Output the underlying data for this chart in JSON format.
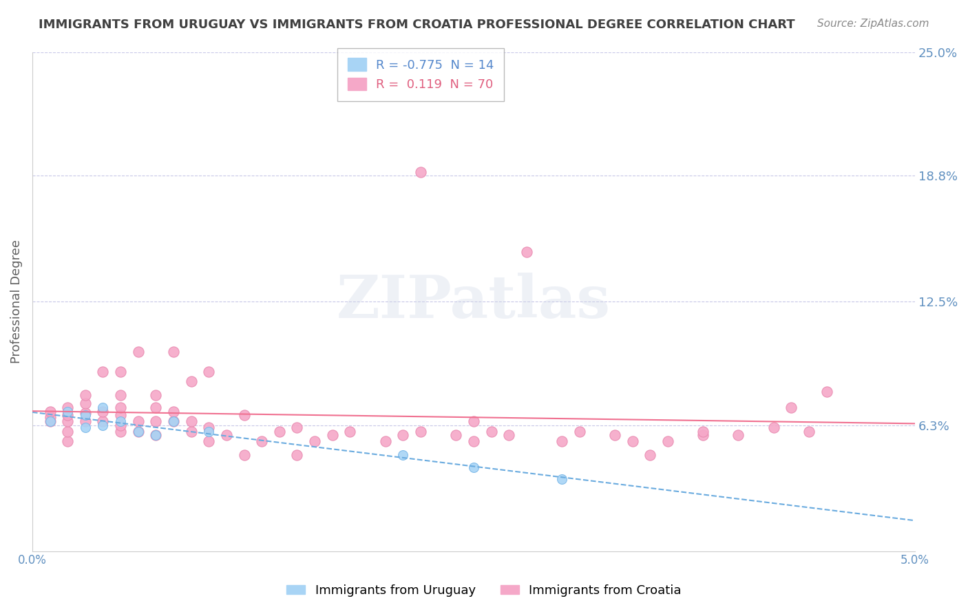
{
  "title": "IMMIGRANTS FROM URUGUAY VS IMMIGRANTS FROM CROATIA PROFESSIONAL DEGREE CORRELATION CHART",
  "source": "Source: ZipAtlas.com",
  "xlabel": "",
  "ylabel": "Professional Degree",
  "xlim": [
    0.0,
    0.05
  ],
  "ylim": [
    0.0,
    0.25
  ],
  "yticks": [
    0.0,
    0.063,
    0.125,
    0.188,
    0.25
  ],
  "ytick_labels": [
    "",
    "6.3%",
    "12.5%",
    "18.8%",
    "25.0%"
  ],
  "xticks": [
    0.0,
    0.05
  ],
  "xtick_labels": [
    "0.0%",
    "5.0%"
  ],
  "watermark": "ZIPatlas",
  "legend_entries": [
    {
      "label": "Immigrants from Uruguay",
      "color": "#a8d4f5"
    },
    {
      "label": "Immigrants from Croatia",
      "color": "#f5a8c8"
    }
  ],
  "r_uruguay": -0.775,
  "n_uruguay": 14,
  "r_croatia": 0.119,
  "n_croatia": 70,
  "color_uruguay": "#a8d4f5",
  "color_croatia": "#f5a8c8",
  "edge_uruguay": "#7bb8e8",
  "edge_croatia": "#e88ab0",
  "line_color_uruguay": "#6aabdf",
  "line_color_croatia": "#f07090",
  "uruguay_x": [
    0.001,
    0.002,
    0.003,
    0.003,
    0.004,
    0.004,
    0.005,
    0.006,
    0.007,
    0.008,
    0.01,
    0.021,
    0.025,
    0.03
  ],
  "uruguay_y": [
    0.065,
    0.07,
    0.062,
    0.068,
    0.063,
    0.072,
    0.065,
    0.06,
    0.058,
    0.065,
    0.06,
    0.048,
    0.042,
    0.036
  ],
  "croatia_x": [
    0.001,
    0.001,
    0.001,
    0.002,
    0.002,
    0.002,
    0.002,
    0.002,
    0.003,
    0.003,
    0.003,
    0.003,
    0.004,
    0.004,
    0.004,
    0.005,
    0.005,
    0.005,
    0.005,
    0.005,
    0.005,
    0.006,
    0.006,
    0.006,
    0.007,
    0.007,
    0.007,
    0.007,
    0.008,
    0.008,
    0.008,
    0.009,
    0.009,
    0.009,
    0.01,
    0.01,
    0.01,
    0.011,
    0.012,
    0.012,
    0.013,
    0.014,
    0.015,
    0.015,
    0.016,
    0.017,
    0.018,
    0.02,
    0.021,
    0.022,
    0.022,
    0.024,
    0.025,
    0.025,
    0.026,
    0.027,
    0.028,
    0.03,
    0.031,
    0.033,
    0.034,
    0.035,
    0.036,
    0.038,
    0.038,
    0.04,
    0.042,
    0.043,
    0.044,
    0.045
  ],
  "croatia_y": [
    0.065,
    0.067,
    0.07,
    0.055,
    0.06,
    0.065,
    0.068,
    0.072,
    0.065,
    0.069,
    0.074,
    0.078,
    0.065,
    0.07,
    0.09,
    0.06,
    0.063,
    0.068,
    0.072,
    0.078,
    0.09,
    0.06,
    0.065,
    0.1,
    0.058,
    0.065,
    0.072,
    0.078,
    0.065,
    0.07,
    0.1,
    0.06,
    0.065,
    0.085,
    0.055,
    0.062,
    0.09,
    0.058,
    0.048,
    0.068,
    0.055,
    0.06,
    0.048,
    0.062,
    0.055,
    0.058,
    0.06,
    0.055,
    0.058,
    0.06,
    0.19,
    0.058,
    0.055,
    0.065,
    0.06,
    0.058,
    0.15,
    0.055,
    0.06,
    0.058,
    0.055,
    0.048,
    0.055,
    0.058,
    0.06,
    0.058,
    0.062,
    0.072,
    0.06,
    0.08
  ],
  "background_color": "#ffffff",
  "grid_color": "#c8c8e8",
  "title_color": "#404040",
  "axis_label_color": "#606060",
  "tick_color": "#6090c0",
  "right_tick_color": "#6090c0"
}
